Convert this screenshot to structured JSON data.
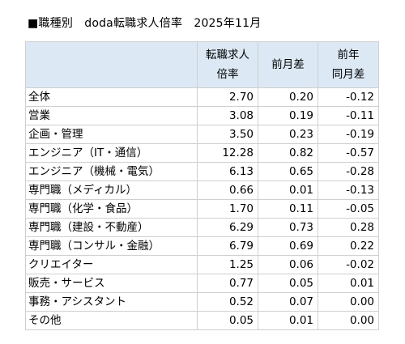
{
  "title": "■職種別　doda転職求人倍率　2025年11月",
  "columns": {
    "ratio_line1": "転職求人",
    "ratio_line2": "倍率",
    "mom": "前月差",
    "yoy_line1": "前年",
    "yoy_line2": "同月差"
  },
  "rows": [
    {
      "category": "全体",
      "ratio": "2.70",
      "mom": "0.20",
      "yoy": "-0.12"
    },
    {
      "category": "営業",
      "ratio": "3.08",
      "mom": "0.19",
      "yoy": "-0.11"
    },
    {
      "category": "企画・管理",
      "ratio": "3.50",
      "mom": "0.23",
      "yoy": "-0.19"
    },
    {
      "category": "エンジニア（IT・通信）",
      "ratio": "12.28",
      "mom": "0.82",
      "yoy": "-0.57"
    },
    {
      "category": "エンジニア（機械・電気）",
      "ratio": "6.13",
      "mom": "0.65",
      "yoy": "-0.28"
    },
    {
      "category": "専門職（メディカル）",
      "ratio": "0.66",
      "mom": "0.01",
      "yoy": "-0.13"
    },
    {
      "category": "専門職（化学・食品）",
      "ratio": "1.70",
      "mom": "0.11",
      "yoy": "-0.05"
    },
    {
      "category": "専門職（建設・不動産）",
      "ratio": "6.29",
      "mom": "0.73",
      "yoy": "0.28"
    },
    {
      "category": "専門職（コンサル・金融）",
      "ratio": "6.79",
      "mom": "0.69",
      "yoy": "0.22"
    },
    {
      "category": "クリエイター",
      "ratio": "1.25",
      "mom": "0.06",
      "yoy": "-0.02"
    },
    {
      "category": "販売・サービス",
      "ratio": "0.77",
      "mom": "0.05",
      "yoy": "0.01"
    },
    {
      "category": "事務・アシスタント",
      "ratio": "0.52",
      "mom": "0.07",
      "yoy": "0.00"
    },
    {
      "category": "その他",
      "ratio": "0.05",
      "mom": "0.01",
      "yoy": "0.00"
    }
  ]
}
